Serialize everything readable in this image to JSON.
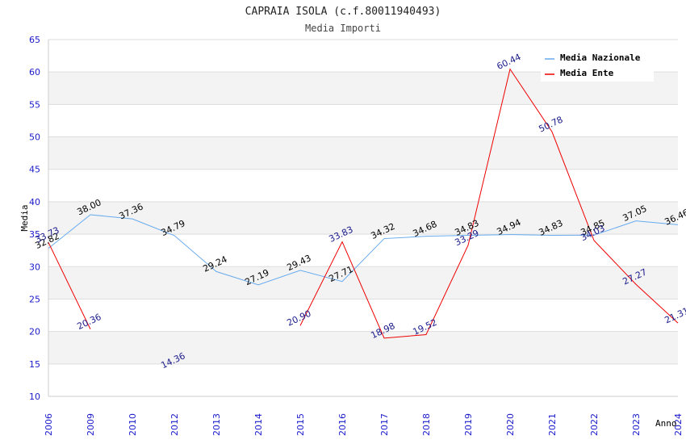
{
  "chart_data": {
    "type": "line",
    "title": "CAPRAIA ISOLA (c.f.80011940493)",
    "subtitle": "Media Importi",
    "xlabel": "Anno",
    "ylabel": "Media",
    "categories": [
      "2006",
      "2009",
      "2010",
      "2012",
      "2013",
      "2014",
      "2015",
      "2016",
      "2017",
      "2018",
      "2019",
      "2020",
      "2021",
      "2022",
      "2023",
      "2024"
    ],
    "ylim": [
      10,
      65
    ],
    "yticks": [
      10,
      15,
      20,
      25,
      30,
      35,
      40,
      45,
      50,
      55,
      60,
      65
    ],
    "grid": true,
    "legend_position": "top-right",
    "series": [
      {
        "name": "Media Nazionale",
        "color": "#66aaee",
        "label_color": "#000000",
        "values": [
          32.82,
          38.0,
          37.36,
          34.79,
          29.24,
          27.19,
          29.43,
          27.71,
          34.32,
          34.68,
          34.83,
          34.94,
          34.83,
          34.85,
          37.05,
          36.46
        ],
        "labels": [
          "32.82",
          "38.00",
          "37.36",
          "34.79",
          "29.24",
          "27.19",
          "29.43",
          "27.71",
          "34.32",
          "34.68",
          "34.83",
          "34.94",
          "34.83",
          "34.85",
          "37.05",
          "36.46"
        ]
      },
      {
        "name": "Media Ente",
        "color": "#ee0000",
        "label_color": "#1a1a8c",
        "values": [
          33.73,
          20.36,
          null,
          14.36,
          null,
          null,
          20.9,
          33.83,
          18.98,
          19.52,
          33.29,
          60.44,
          50.78,
          34.03,
          27.27,
          21.31
        ],
        "labels": [
          "33.73",
          "20.36",
          "",
          "14.36",
          "",
          "",
          "20.90",
          "33.83",
          "18.98",
          "19.52",
          "33.29",
          "60.44",
          "50.78",
          "34.03",
          "27.27",
          "21.31"
        ]
      }
    ]
  }
}
